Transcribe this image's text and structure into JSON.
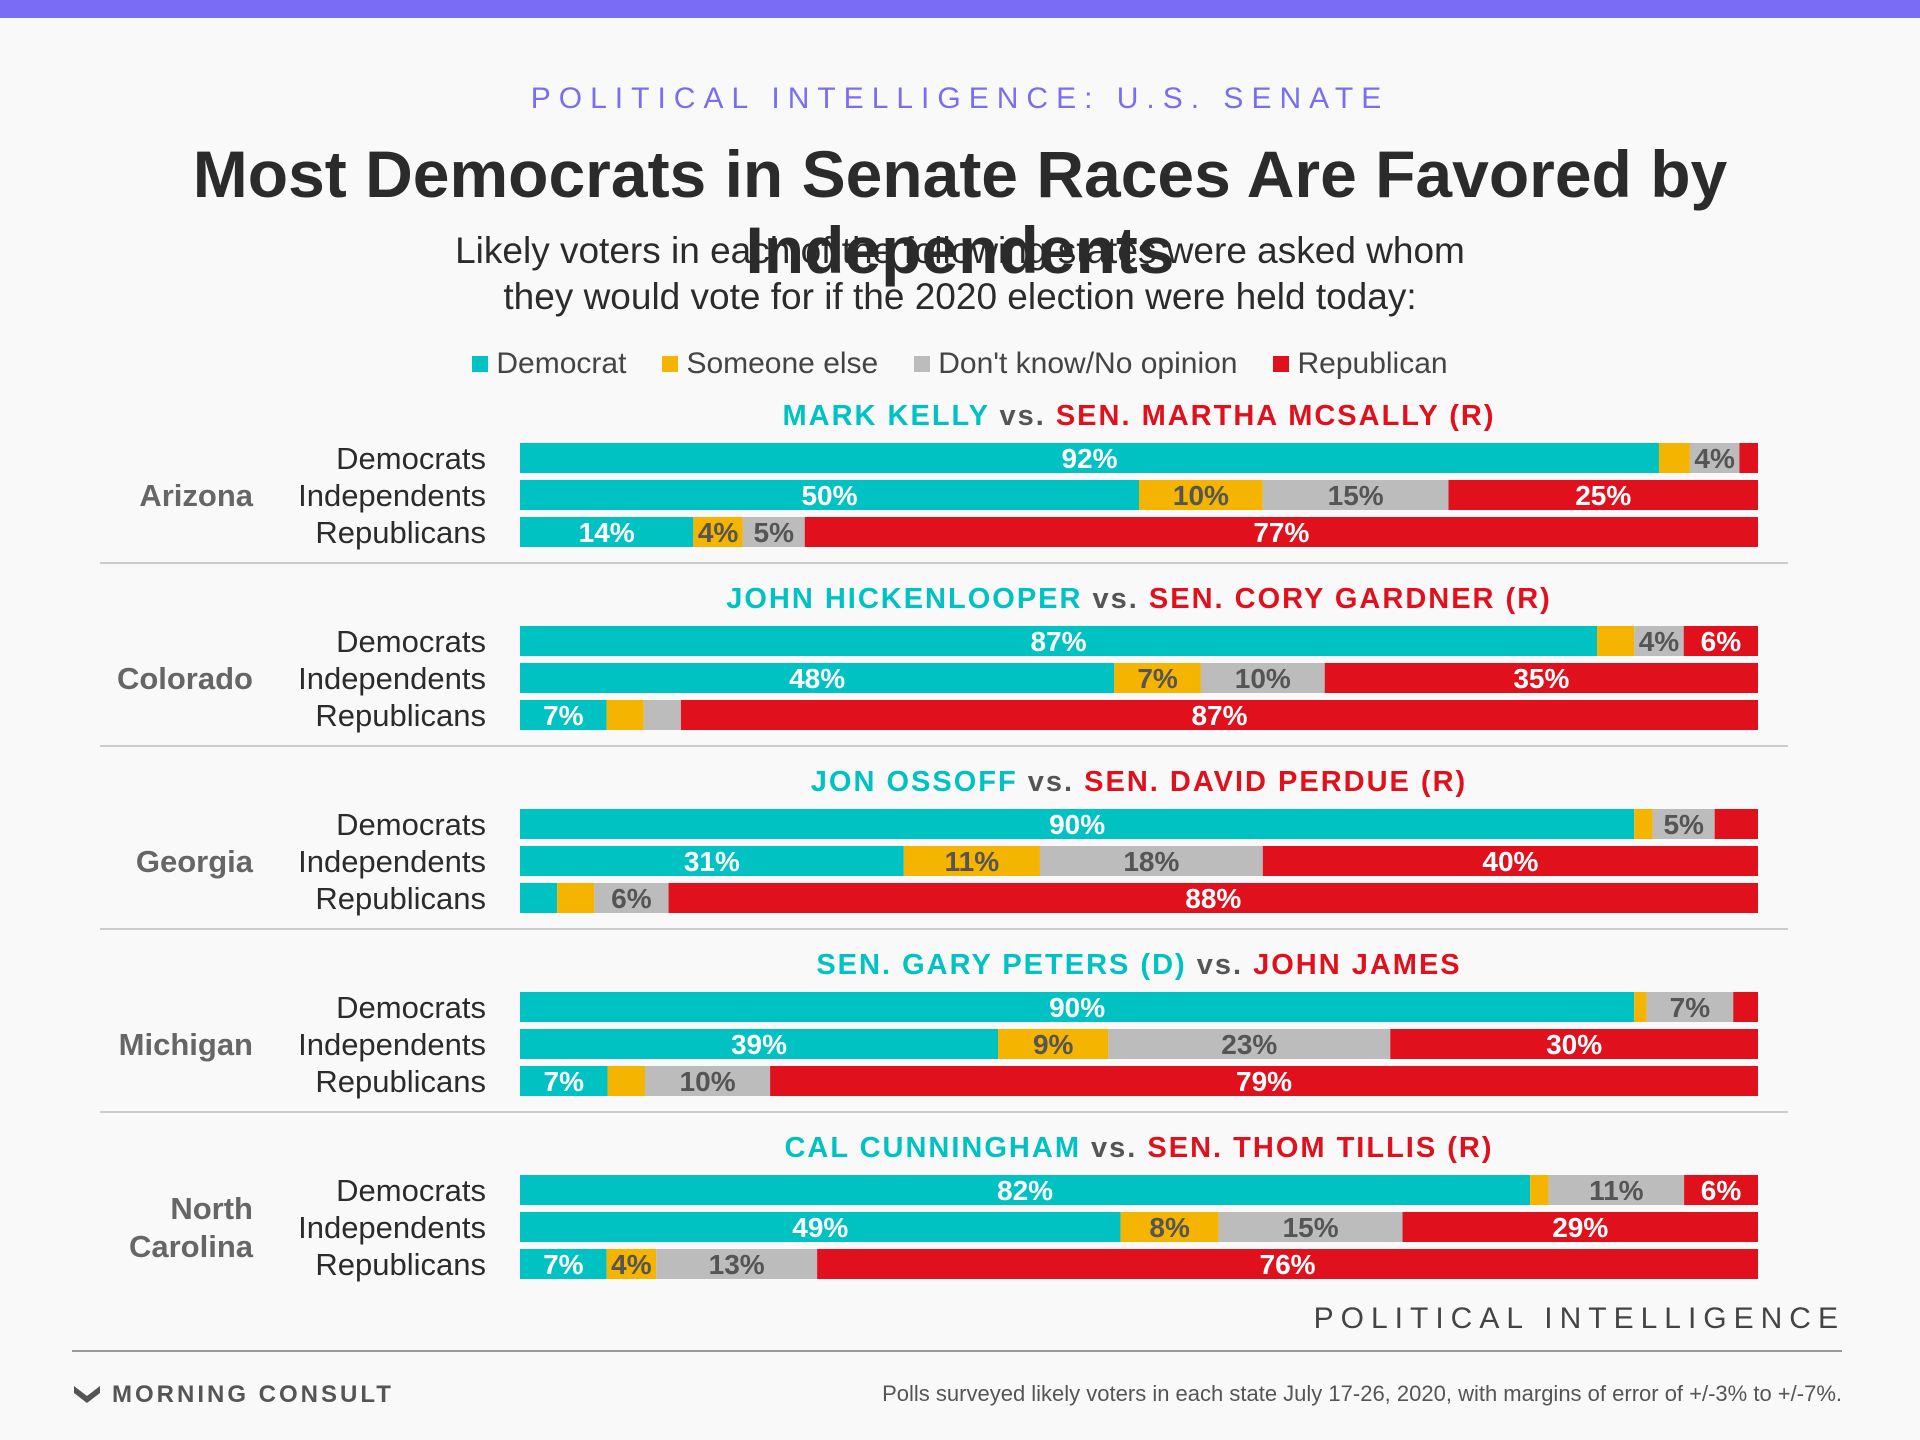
{
  "header": {
    "kicker": "POLITICAL INTELLIGENCE: U.S. SENATE",
    "title": "Most Democrats in Senate Races Are Favored by Independents",
    "subtitle_line1": "Likely voters in each of the following states were asked whom",
    "subtitle_line2": "they would vote for if the 2020 election were held today:"
  },
  "colors": {
    "democrat": "#00c2c2",
    "someone_else": "#f5b400",
    "dont_know": "#bcbcbc",
    "republican": "#e0101c",
    "label_gray": "#555555",
    "text_dark": "#2b2b2b",
    "separator": "#cccccc"
  },
  "chart_data": {
    "type": "bar",
    "orientation": "horizontal",
    "stacked": true,
    "units": "percent",
    "legend": {
      "placement": "top",
      "entries": [
        "Democrat",
        "Someone else",
        "Don't know/No opinion",
        "Republican"
      ]
    },
    "groups": [
      "Democrats",
      "Independents",
      "Republicans"
    ],
    "states": [
      {
        "state": "Arizona",
        "state_lines": [
          "Arizona"
        ],
        "democrat_candidate": "MARK KELLY",
        "republican_candidate": "SEN. MARTHA MCSALLY (R)",
        "values": {
          "Democrats": [
            92,
            2.5,
            4,
            1.5
          ],
          "Independents": [
            50,
            10,
            15,
            25
          ],
          "Republicans": [
            14,
            4,
            5,
            77
          ]
        },
        "labels": {
          "Democrats": [
            "92%",
            "",
            "4%",
            ""
          ],
          "Independents": [
            "50%",
            "10%",
            "15%",
            "25%"
          ],
          "Republicans": [
            "14%",
            "4%",
            "5%",
            "77%"
          ]
        }
      },
      {
        "state": "Colorado",
        "state_lines": [
          "Colorado"
        ],
        "democrat_candidate": "JOHN HICKENLOOPER",
        "republican_candidate": "SEN. CORY GARDNER (R)",
        "values": {
          "Democrats": [
            87,
            3,
            4,
            6
          ],
          "Independents": [
            48,
            7,
            10,
            35
          ],
          "Republicans": [
            7,
            3,
            3,
            87
          ]
        },
        "labels": {
          "Democrats": [
            "87%",
            "",
            "4%",
            "6%"
          ],
          "Independents": [
            "48%",
            "7%",
            "10%",
            "35%"
          ],
          "Republicans": [
            "7%",
            "",
            "",
            "87%"
          ]
        }
      },
      {
        "state": "Georgia",
        "state_lines": [
          "Georgia"
        ],
        "democrat_candidate": "JON OSSOFF",
        "republican_candidate": "SEN. DAVID PERDUE (R)",
        "values": {
          "Democrats": [
            90,
            1.5,
            5,
            3.5
          ],
          "Independents": [
            31,
            11,
            18,
            40
          ],
          "Republicans": [
            3,
            3,
            6,
            88
          ]
        },
        "labels": {
          "Democrats": [
            "90%",
            "",
            "5%",
            ""
          ],
          "Independents": [
            "31%",
            "11%",
            "18%",
            "40%"
          ],
          "Republicans": [
            "",
            "",
            "6%",
            "88%"
          ]
        }
      },
      {
        "state": "Michigan",
        "state_lines": [
          "Michigan"
        ],
        "democrat_candidate": "SEN. GARY PETERS (D)",
        "republican_candidate": "JOHN JAMES",
        "values": {
          "Democrats": [
            90,
            1,
            7,
            2
          ],
          "Independents": [
            39,
            9,
            23,
            30
          ],
          "Republicans": [
            7,
            3,
            10,
            79
          ]
        },
        "labels": {
          "Democrats": [
            "90%",
            "",
            "7%",
            ""
          ],
          "Independents": [
            "39%",
            "9%",
            "23%",
            "30%"
          ],
          "Republicans": [
            "7%",
            "",
            "10%",
            "79%"
          ]
        }
      },
      {
        "state": "North Carolina",
        "state_lines": [
          "North",
          "Carolina"
        ],
        "democrat_candidate": "CAL CUNNINGHAM",
        "republican_candidate": "SEN. THOM TILLIS (R)",
        "values": {
          "Democrats": [
            82,
            1.5,
            11,
            6
          ],
          "Independents": [
            49,
            8,
            15,
            29
          ],
          "Republicans": [
            7,
            4,
            13,
            76
          ]
        },
        "labels": {
          "Democrats": [
            "82%",
            "",
            "11%",
            "6%"
          ],
          "Independents": [
            "49%",
            "8%",
            "15%",
            "29%"
          ],
          "Republicans": [
            "7%",
            "4%",
            "13%",
            "76%"
          ]
        }
      }
    ]
  },
  "footer": {
    "brand": "POLITICAL INTELLIGENCE",
    "logo_text": "MORNING CONSULT",
    "logo_icon": "morning-consult-chevron-icon",
    "note": "Polls surveyed likely voters in each state July 17-26, 2020, with margins of error of +/-3% to +/-7%."
  }
}
